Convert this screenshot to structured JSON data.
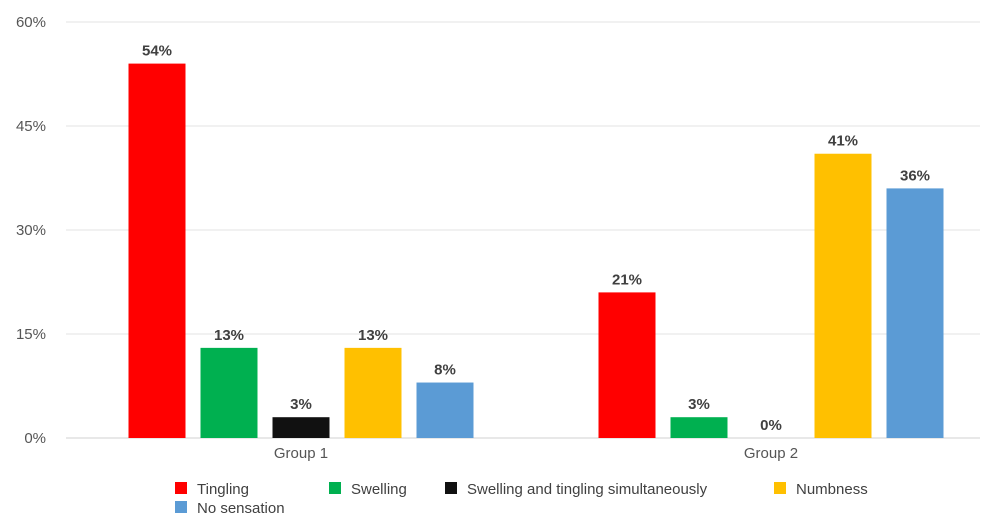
{
  "chart_data": {
    "type": "bar",
    "categories": [
      "Group 1",
      "Group 2"
    ],
    "series": [
      {
        "name": "Tingling",
        "color": "#ff0000",
        "values": [
          54,
          21
        ],
        "labels": [
          "54%",
          "21%"
        ]
      },
      {
        "name": "Swelling",
        "color": "#00b050",
        "values": [
          13,
          3
        ],
        "labels": [
          "13%",
          "3%"
        ]
      },
      {
        "name": "Swelling and tingling simultaneously",
        "color": "#111111",
        "values": [
          3,
          0
        ],
        "labels": [
          "3%",
          "0%"
        ]
      },
      {
        "name": "Numbness",
        "color": "#ffc000",
        "values": [
          13,
          41
        ],
        "labels": [
          "13%",
          "41%"
        ]
      },
      {
        "name": "No sensation",
        "color": "#5b9bd5",
        "values": [
          8,
          36
        ],
        "labels": [
          "8%",
          "36%"
        ]
      }
    ],
    "yticks": [
      "0%",
      "15%",
      "30%",
      "45%",
      "60%"
    ],
    "ylim": [
      0,
      60
    ],
    "grid": true,
    "legend_position": "bottom",
    "title": "",
    "xlabel": "",
    "ylabel": ""
  }
}
